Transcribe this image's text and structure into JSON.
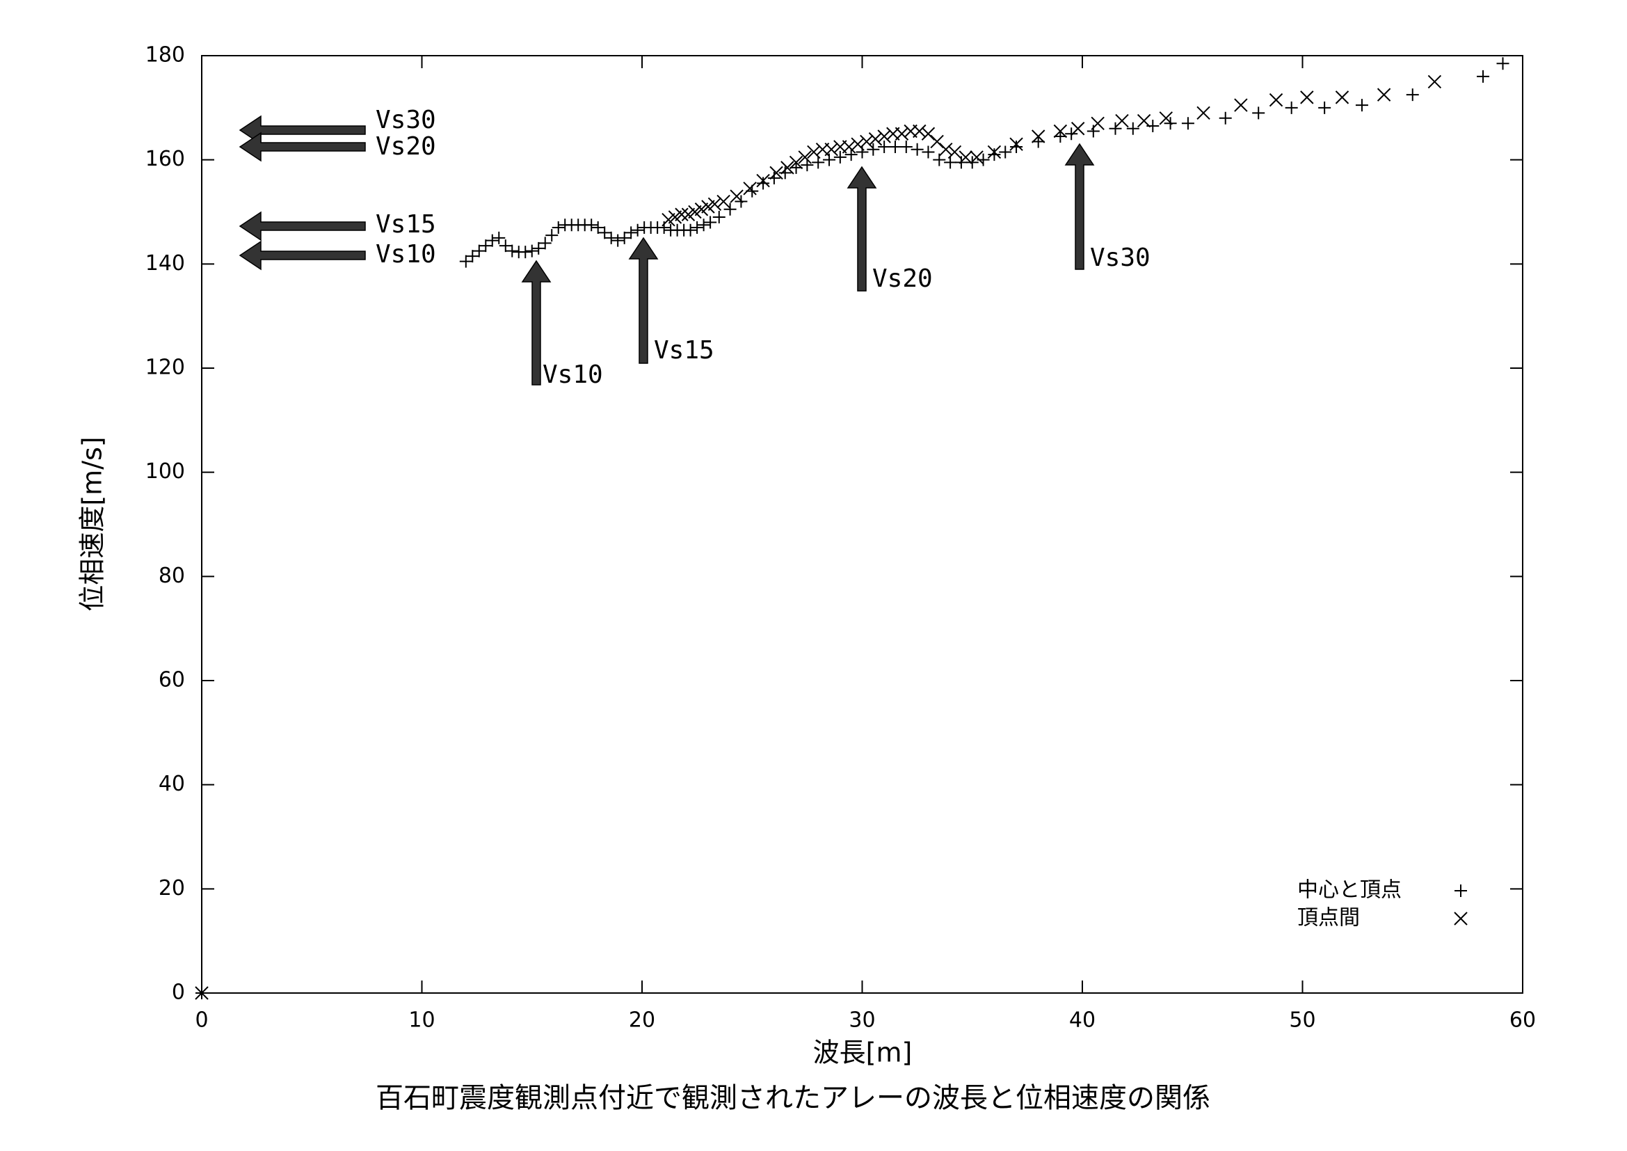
{
  "chart_data": {
    "type": "scatter",
    "title": "百石町震度観測点付近で観測されたアレーの波長と位相速度の関係",
    "xlabel": "波長[m]",
    "ylabel": "位相速度[m/s]",
    "xlim": [
      0,
      60
    ],
    "xticks": [
      0,
      10,
      20,
      30,
      40,
      50,
      60
    ],
    "ylim": [
      0,
      180
    ],
    "yticks": [
      0,
      20,
      40,
      60,
      80,
      100,
      120,
      140,
      160,
      180
    ],
    "legend": "lower right",
    "series": [
      {
        "name": "中心と頂点",
        "marker": "plus",
        "color": "#000000",
        "x": [
          0,
          12.0,
          12.3,
          12.6,
          12.9,
          13.2,
          13.5,
          13.8,
          14.1,
          14.4,
          14.7,
          15.0,
          15.3,
          15.6,
          15.9,
          16.2,
          16.5,
          16.8,
          17.1,
          17.4,
          17.7,
          18.0,
          18.3,
          18.6,
          18.9,
          19.2,
          19.5,
          19.8,
          20.1,
          20.4,
          20.7,
          21.0,
          21.3,
          21.6,
          21.9,
          22.2,
          22.5,
          22.8,
          23.1,
          23.5,
          24.0,
          24.5,
          25.0,
          25.5,
          26.0,
          26.5,
          27.0,
          27.5,
          28.0,
          28.5,
          29.0,
          29.5,
          30.0,
          30.5,
          31.0,
          31.5,
          32.0,
          32.5,
          33.0,
          33.5,
          34.0,
          34.5,
          35.0,
          35.5,
          36.0,
          36.5,
          37.0,
          38.0,
          39.0,
          39.5,
          40.5,
          41.5,
          42.3,
          43.2,
          44.0,
          44.8,
          46.5,
          48.0,
          49.5,
          51.0,
          52.7,
          55.0,
          58.2,
          59.1
        ],
        "values": [
          0,
          140.5,
          141.5,
          142.5,
          143.5,
          144.5,
          145,
          143.5,
          142.5,
          142.3,
          142.3,
          142.5,
          143,
          144,
          145.5,
          147,
          147.5,
          147.5,
          147.5,
          147.5,
          147.5,
          147,
          146,
          145,
          144.5,
          145,
          146,
          146.5,
          147,
          147,
          147,
          147,
          146.5,
          146.5,
          146.5,
          146.5,
          147,
          147.5,
          148,
          149,
          150.5,
          152,
          154,
          155.5,
          156.5,
          157.5,
          158.5,
          159,
          159.5,
          160,
          160.5,
          161,
          161.5,
          162,
          162.5,
          162.5,
          162.5,
          162,
          161.5,
          160,
          159.5,
          159.5,
          159.5,
          160,
          161,
          161.5,
          162.5,
          163.5,
          164.5,
          165,
          165.5,
          166,
          166,
          166.5,
          167,
          167,
          168,
          169,
          170,
          170,
          170.5,
          172.5,
          176,
          178.5
        ]
      },
      {
        "name": "頂点間",
        "marker": "cross",
        "color": "#000000",
        "x": [
          0,
          21.2,
          21.5,
          21.8,
          22.1,
          22.4,
          22.7,
          23.0,
          23.3,
          23.7,
          24.3,
          24.9,
          25.5,
          26.1,
          26.6,
          27.0,
          27.4,
          27.8,
          28.2,
          28.6,
          29.0,
          29.4,
          29.8,
          30.2,
          30.6,
          31.0,
          31.4,
          31.8,
          32.2,
          32.6,
          33.0,
          33.4,
          33.8,
          34.2,
          34.7,
          35.2,
          36.0,
          37.0,
          38.0,
          39.0,
          39.8,
          40.7,
          41.8,
          42.8,
          43.8,
          45.5,
          47.2,
          48.8,
          50.2,
          51.8,
          53.7,
          56.0
        ],
        "values": [
          0,
          148.5,
          149,
          149.5,
          149.5,
          150,
          150.5,
          151,
          151.5,
          152,
          153,
          154.5,
          156,
          157.5,
          158.5,
          159.5,
          160.5,
          161.5,
          162,
          162,
          162.5,
          162.5,
          163,
          163.5,
          164,
          164.5,
          165,
          165,
          165.5,
          165.5,
          165,
          163.5,
          162,
          161.5,
          160.5,
          160.5,
          161.5,
          163,
          164.5,
          165.5,
          166,
          167,
          167.5,
          167.5,
          168,
          169,
          170.5,
          171.5,
          172,
          172,
          172.5,
          175
        ]
      }
    ],
    "annotations": [
      "Vs30",
      "Vs20",
      "Vs15",
      "Vs10",
      "Vs10",
      "Vs15",
      "Vs20",
      "Vs30"
    ]
  }
}
